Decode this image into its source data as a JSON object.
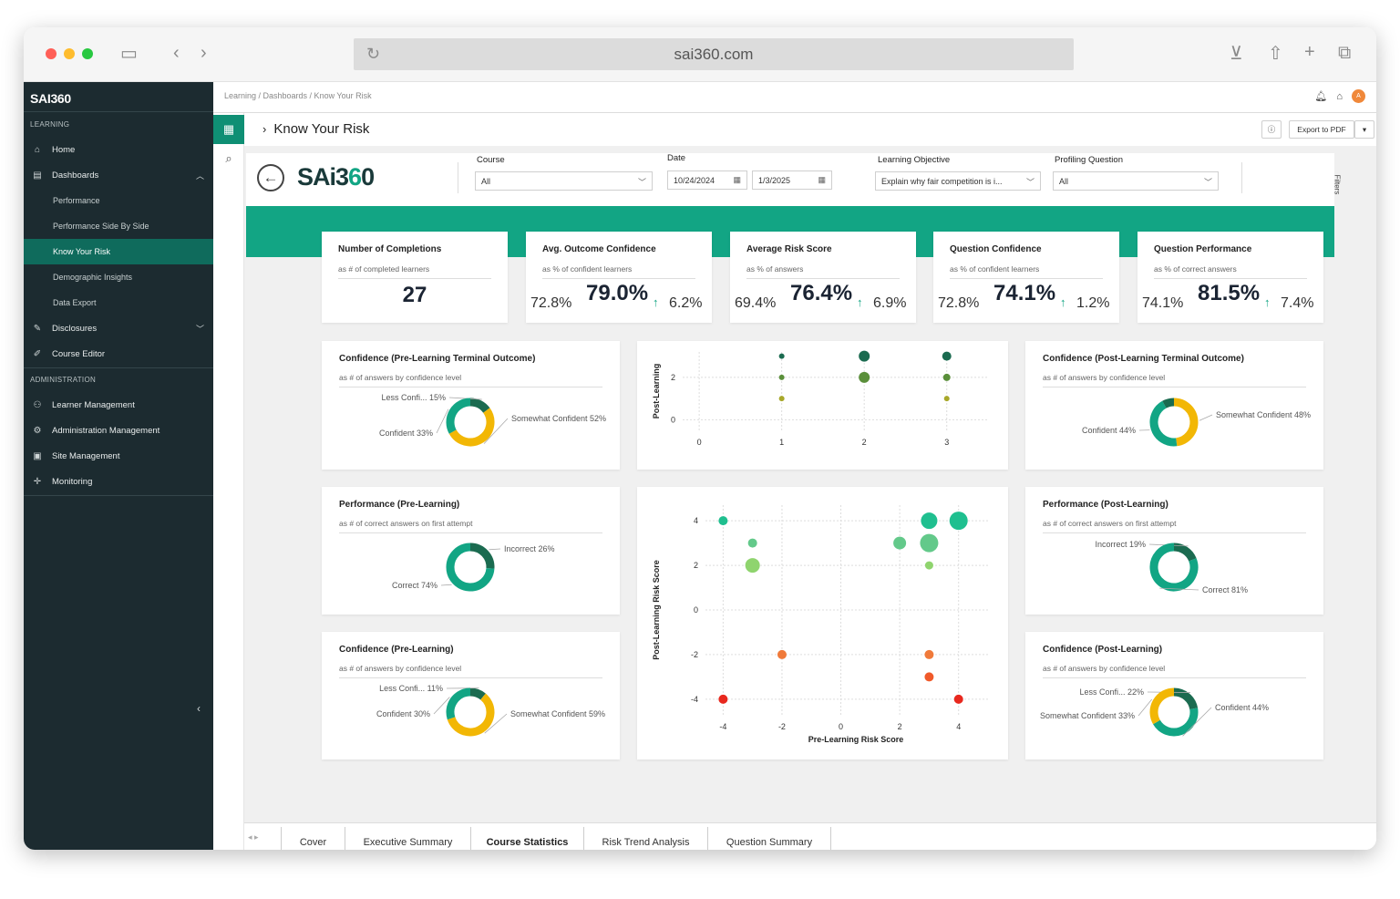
{
  "browser": {
    "url": "sai360.com"
  },
  "sidebar": {
    "logo": "SAI360",
    "sections": {
      "learning": "LEARNING",
      "administration": "ADMINISTRATION"
    },
    "items": [
      {
        "label": "Home",
        "icon": "home-icon"
      },
      {
        "label": "Dashboards",
        "icon": "dashboard-icon"
      },
      {
        "label": "Performance"
      },
      {
        "label": "Performance Side By Side"
      },
      {
        "label": "Know Your Risk"
      },
      {
        "label": "Demographic Insights"
      },
      {
        "label": "Data Export"
      },
      {
        "label": "Disclosures",
        "icon": "edit-icon"
      },
      {
        "label": "Course Editor",
        "icon": "course-editor-icon"
      },
      {
        "label": "Learner Management",
        "icon": "learners-icon"
      },
      {
        "label": "Administration Management",
        "icon": "admin-icon"
      },
      {
        "label": "Site Management",
        "icon": "site-icon"
      },
      {
        "label": "Monitoring",
        "icon": "monitoring-icon"
      }
    ]
  },
  "header": {
    "breadcrumb": "Learning / Dashboards / Know Your Risk",
    "avatar": "A",
    "page_title": "Know Your Risk",
    "export_label": "Export to PDF"
  },
  "report": {
    "brand": {
      "text": "SAi3",
      "accent": "6",
      "tail": "0"
    },
    "filters": {
      "course": {
        "label": "Course",
        "value": "All"
      },
      "date": {
        "label": "Date",
        "from": "10/24/2024",
        "to": "1/3/2025"
      },
      "objective": {
        "label": "Learning Objective",
        "value": "Explain why fair competition is i..."
      },
      "profiling": {
        "label": "Profiling Question",
        "value": "All"
      },
      "pane_label": "Filters"
    },
    "kpis": [
      {
        "title": "Number of Completions",
        "subtitle": "as # of completed learners",
        "value": "27"
      },
      {
        "title": "Avg. Outcome Confidence",
        "subtitle": "as % of confident learners",
        "before": "72.8%",
        "value": "79.0%",
        "delta": "6.2%"
      },
      {
        "title": "Average Risk Score",
        "subtitle": "as % of answers",
        "before": "69.4%",
        "value": "76.4%",
        "delta": "6.9%"
      },
      {
        "title": "Question Confidence",
        "subtitle": "as % of confident learners",
        "before": "72.8%",
        "value": "74.1%",
        "delta": "1.2%"
      },
      {
        "title": "Question Performance",
        "subtitle": "as % of correct answers",
        "before": "74.1%",
        "value": "81.5%",
        "delta": "7.4%"
      }
    ],
    "donuts": [
      {
        "title": "Confidence (Pre-Learning Terminal Outcome)",
        "subtitle": "as # of answers by confidence level",
        "slices": [
          {
            "label": "Less Confi... 15%",
            "value": 15,
            "color": "#1b6b50"
          },
          {
            "label": "Somewhat Confident 52%",
            "value": 52,
            "color": "#f2b705"
          },
          {
            "label": "Confident 33%",
            "value": 33,
            "color": "#12a584"
          }
        ]
      },
      {
        "title": "Confidence (Post-Learning Terminal Outcome)",
        "subtitle": "as # of answers by confidence level",
        "slices": [
          {
            "label": "Somewhat Confident 48%",
            "value": 48,
            "color": "#f2b705"
          },
          {
            "label": "Confident 44%",
            "value": 44,
            "color": "#12a584"
          },
          {
            "label": "",
            "value": 8,
            "color": "#1b6b50"
          }
        ]
      },
      {
        "title": "Performance (Pre-Learning)",
        "subtitle": "as # of correct answers on first attempt",
        "slices": [
          {
            "label": "Incorrect 26%",
            "value": 26,
            "color": "#1b6b50"
          },
          {
            "label": "Correct 74%",
            "value": 74,
            "color": "#12a584"
          }
        ]
      },
      {
        "title": "Performance (Post-Learning)",
        "subtitle": "as # of correct answers on first attempt",
        "slices": [
          {
            "label": "Incorrect 19%",
            "value": 19,
            "color": "#1b6b50"
          },
          {
            "label": "Correct 81%",
            "value": 81,
            "color": "#12a584"
          }
        ]
      },
      {
        "title": "Confidence (Pre-Learning)",
        "subtitle": "as # of answers by confidence level",
        "slices": [
          {
            "label": "Less Confi... 11%",
            "value": 11,
            "color": "#1b6b50"
          },
          {
            "label": "Somewhat Confident 59%",
            "value": 59,
            "color": "#f2b705"
          },
          {
            "label": "Confident 30%",
            "value": 30,
            "color": "#12a584"
          }
        ]
      },
      {
        "title": "Confidence (Post-Learning)",
        "subtitle": "as # of answers by confidence level",
        "slices": [
          {
            "label": "Less Confi... 22%",
            "value": 22,
            "color": "#1b6b50"
          },
          {
            "label": "Confident 44%",
            "value": 44,
            "color": "#12a584"
          },
          {
            "label": "Somewhat Confident 33%",
            "value": 33,
            "color": "#f2b705"
          }
        ]
      }
    ],
    "tabs": [
      "Cover",
      "Executive Summary",
      "Course Statistics",
      "Risk Trend Analysis",
      "Question Summary"
    ],
    "selected_tab": "Course Statistics"
  },
  "chart_data": [
    {
      "type": "scatter",
      "title": "",
      "xlabel": "",
      "ylabel": "Post-Learning",
      "xlim": [
        -0.2,
        3.5
      ],
      "ylim": [
        -0.5,
        3.2
      ],
      "x_ticks": [
        0,
        1,
        2,
        3
      ],
      "y_ticks": [
        0,
        2
      ],
      "grid": true,
      "points": [
        {
          "x": 1,
          "y": 3,
          "size": 3,
          "color": "#1b6b50"
        },
        {
          "x": 1,
          "y": 2,
          "size": 3,
          "color": "#5a8f3a"
        },
        {
          "x": 1,
          "y": 1,
          "size": 3,
          "color": "#a8a82a"
        },
        {
          "x": 2,
          "y": 3,
          "size": 6,
          "color": "#1b6b50"
        },
        {
          "x": 2,
          "y": 2,
          "size": 6,
          "color": "#5a8f3a"
        },
        {
          "x": 3,
          "y": 3,
          "size": 5,
          "color": "#1b6b50"
        },
        {
          "x": 3,
          "y": 2,
          "size": 4,
          "color": "#5a8f3a"
        },
        {
          "x": 3,
          "y": 1,
          "size": 3,
          "color": "#a8a82a"
        }
      ]
    },
    {
      "type": "scatter",
      "title": "",
      "xlabel": "Pre-Learning Risk Score",
      "ylabel": "Post-Learning Risk Score",
      "xlim": [
        -4.6,
        5
      ],
      "ylim": [
        -4.7,
        4.7
      ],
      "x_ticks": [
        -4,
        -2,
        0,
        2,
        4
      ],
      "y_ticks": [
        -4,
        -2,
        0,
        2,
        4
      ],
      "grid": true,
      "points": [
        {
          "x": -4,
          "y": 4,
          "size": 5,
          "color": "#1fbf8f"
        },
        {
          "x": -3,
          "y": 3,
          "size": 5,
          "color": "#63c98a"
        },
        {
          "x": -3,
          "y": 2,
          "size": 8,
          "color": "#8fd46e"
        },
        {
          "x": 2,
          "y": 3,
          "size": 7,
          "color": "#63c98a"
        },
        {
          "x": 3,
          "y": 4,
          "size": 9,
          "color": "#1fbf8f"
        },
        {
          "x": 3,
          "y": 3,
          "size": 10,
          "color": "#63c98a"
        },
        {
          "x": 3,
          "y": 2,
          "size": 4.5,
          "color": "#8fd46e"
        },
        {
          "x": 4,
          "y": 4,
          "size": 10,
          "color": "#1fbf8f"
        },
        {
          "x": -2,
          "y": -2,
          "size": 5,
          "color": "#f07a3a"
        },
        {
          "x": 3,
          "y": -2,
          "size": 5,
          "color": "#f07a3a"
        },
        {
          "x": 3,
          "y": -3,
          "size": 5,
          "color": "#f05a2a"
        },
        {
          "x": -4,
          "y": -4,
          "size": 5,
          "color": "#e8281e"
        },
        {
          "x": 4,
          "y": -4,
          "size": 5,
          "color": "#e8281e"
        }
      ]
    }
  ]
}
